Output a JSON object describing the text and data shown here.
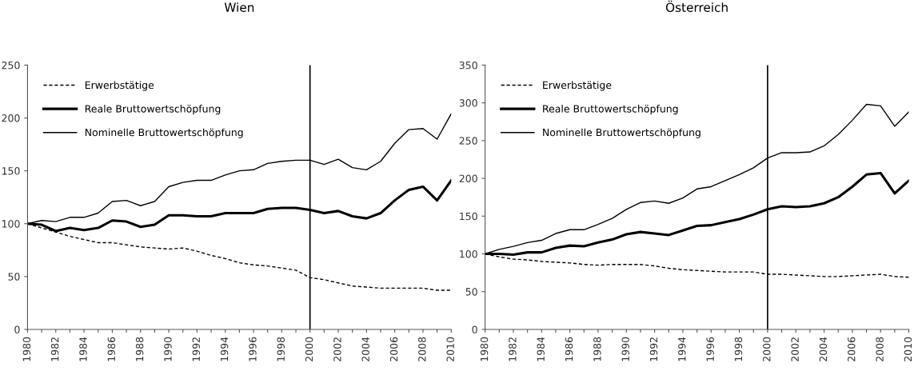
{
  "chart_data": [
    {
      "type": "line",
      "title": "Wien",
      "categories": [
        "1980",
        null,
        "1982",
        null,
        "1984",
        null,
        "1986",
        null,
        "1988",
        null,
        "1990",
        null,
        "1992",
        null,
        "1994",
        null,
        "1996",
        null,
        "1998",
        null,
        "2000",
        null,
        "2002",
        null,
        "2004",
        null,
        "2006",
        null,
        "2008",
        null,
        "2010"
      ],
      "ylim": [
        0,
        250
      ],
      "yticks": [
        0,
        50,
        100,
        150,
        200,
        250
      ],
      "grid": false,
      "legend": "top left",
      "marker": "none",
      "series": [
        {
          "name": "Erwerbstätige",
          "color": "#000000",
          "line_style": "dashed",
          "values": [
            100,
            96,
            92,
            88,
            85,
            82,
            82,
            80,
            78,
            77,
            76,
            77,
            74,
            70,
            67,
            63,
            61,
            60,
            58,
            56,
            49,
            47,
            44,
            41,
            40,
            39,
            39,
            39,
            39,
            37,
            37
          ]
        },
        {
          "name": "Reale Bruttowertschöpfung",
          "color": "#000000",
          "line_style": "solid",
          "values": [
            100,
            99,
            93,
            96,
            94,
            96,
            103,
            102,
            97,
            99,
            108,
            108,
            107,
            107,
            110,
            110,
            110,
            114,
            115,
            115,
            113,
            110,
            112,
            107,
            105,
            110,
            122,
            132,
            135,
            122,
            141
          ]
        },
        {
          "name": "Nominelle Bruttowertschöpfung",
          "color": "#000000",
          "line_style": "solid",
          "values": [
            100,
            103,
            102,
            106,
            106,
            110,
            121,
            122,
            117,
            121,
            135,
            139,
            141,
            141,
            146,
            150,
            151,
            157,
            159,
            160,
            160,
            156,
            161,
            153,
            151,
            159,
            176,
            189,
            190,
            180,
            204
          ]
        }
      ],
      "ref_lines": [
        {
          "axis": "x",
          "value": "2000",
          "color": "#000000",
          "line_style": "solid"
        }
      ]
    },
    {
      "type": "line",
      "title": "Österreich",
      "categories": [
        "1980",
        null,
        "1982",
        null,
        "1984",
        null,
        "1986",
        null,
        "1988",
        null,
        "1990",
        null,
        "1992",
        null,
        "1994",
        null,
        "1996",
        null,
        "1998",
        null,
        "2000",
        null,
        "2002",
        null,
        "2004",
        null,
        "2006",
        null,
        "2008",
        null,
        "2010"
      ],
      "ylim": [
        0,
        350
      ],
      "yticks": [
        0,
        50,
        100,
        150,
        200,
        250,
        300,
        350
      ],
      "grid": false,
      "legend": "top left",
      "marker": "none",
      "series": [
        {
          "name": "Erwerbstätige",
          "color": "#000000",
          "line_style": "dashed",
          "values": [
            100,
            96,
            93,
            92,
            90,
            89,
            88,
            86,
            85,
            86,
            86,
            86,
            84,
            81,
            79,
            78,
            77,
            76,
            76,
            76,
            73,
            73,
            72,
            71,
            70,
            70,
            71,
            72,
            73,
            70,
            69
          ]
        },
        {
          "name": "Reale Bruttowertschöpfung",
          "color": "#000000",
          "line_style": "solid",
          "values": [
            100,
            100,
            99,
            102,
            102,
            108,
            111,
            110,
            115,
            119,
            126,
            129,
            127,
            125,
            131,
            137,
            138,
            142,
            146,
            152,
            159,
            163,
            162,
            163,
            167,
            175,
            189,
            205,
            207,
            180,
            197
          ]
        },
        {
          "name": "Nominelle Bruttowertschöpfung",
          "color": "#000000",
          "line_style": "solid",
          "values": [
            100,
            106,
            110,
            115,
            118,
            127,
            132,
            132,
            139,
            147,
            159,
            168,
            170,
            167,
            174,
            186,
            189,
            197,
            205,
            214,
            227,
            234,
            234,
            235,
            243,
            258,
            277,
            298,
            296,
            269,
            288
          ]
        }
      ],
      "ref_lines": [
        {
          "axis": "x",
          "value": "2000",
          "color": "#000000",
          "line_style": "solid"
        }
      ]
    }
  ]
}
